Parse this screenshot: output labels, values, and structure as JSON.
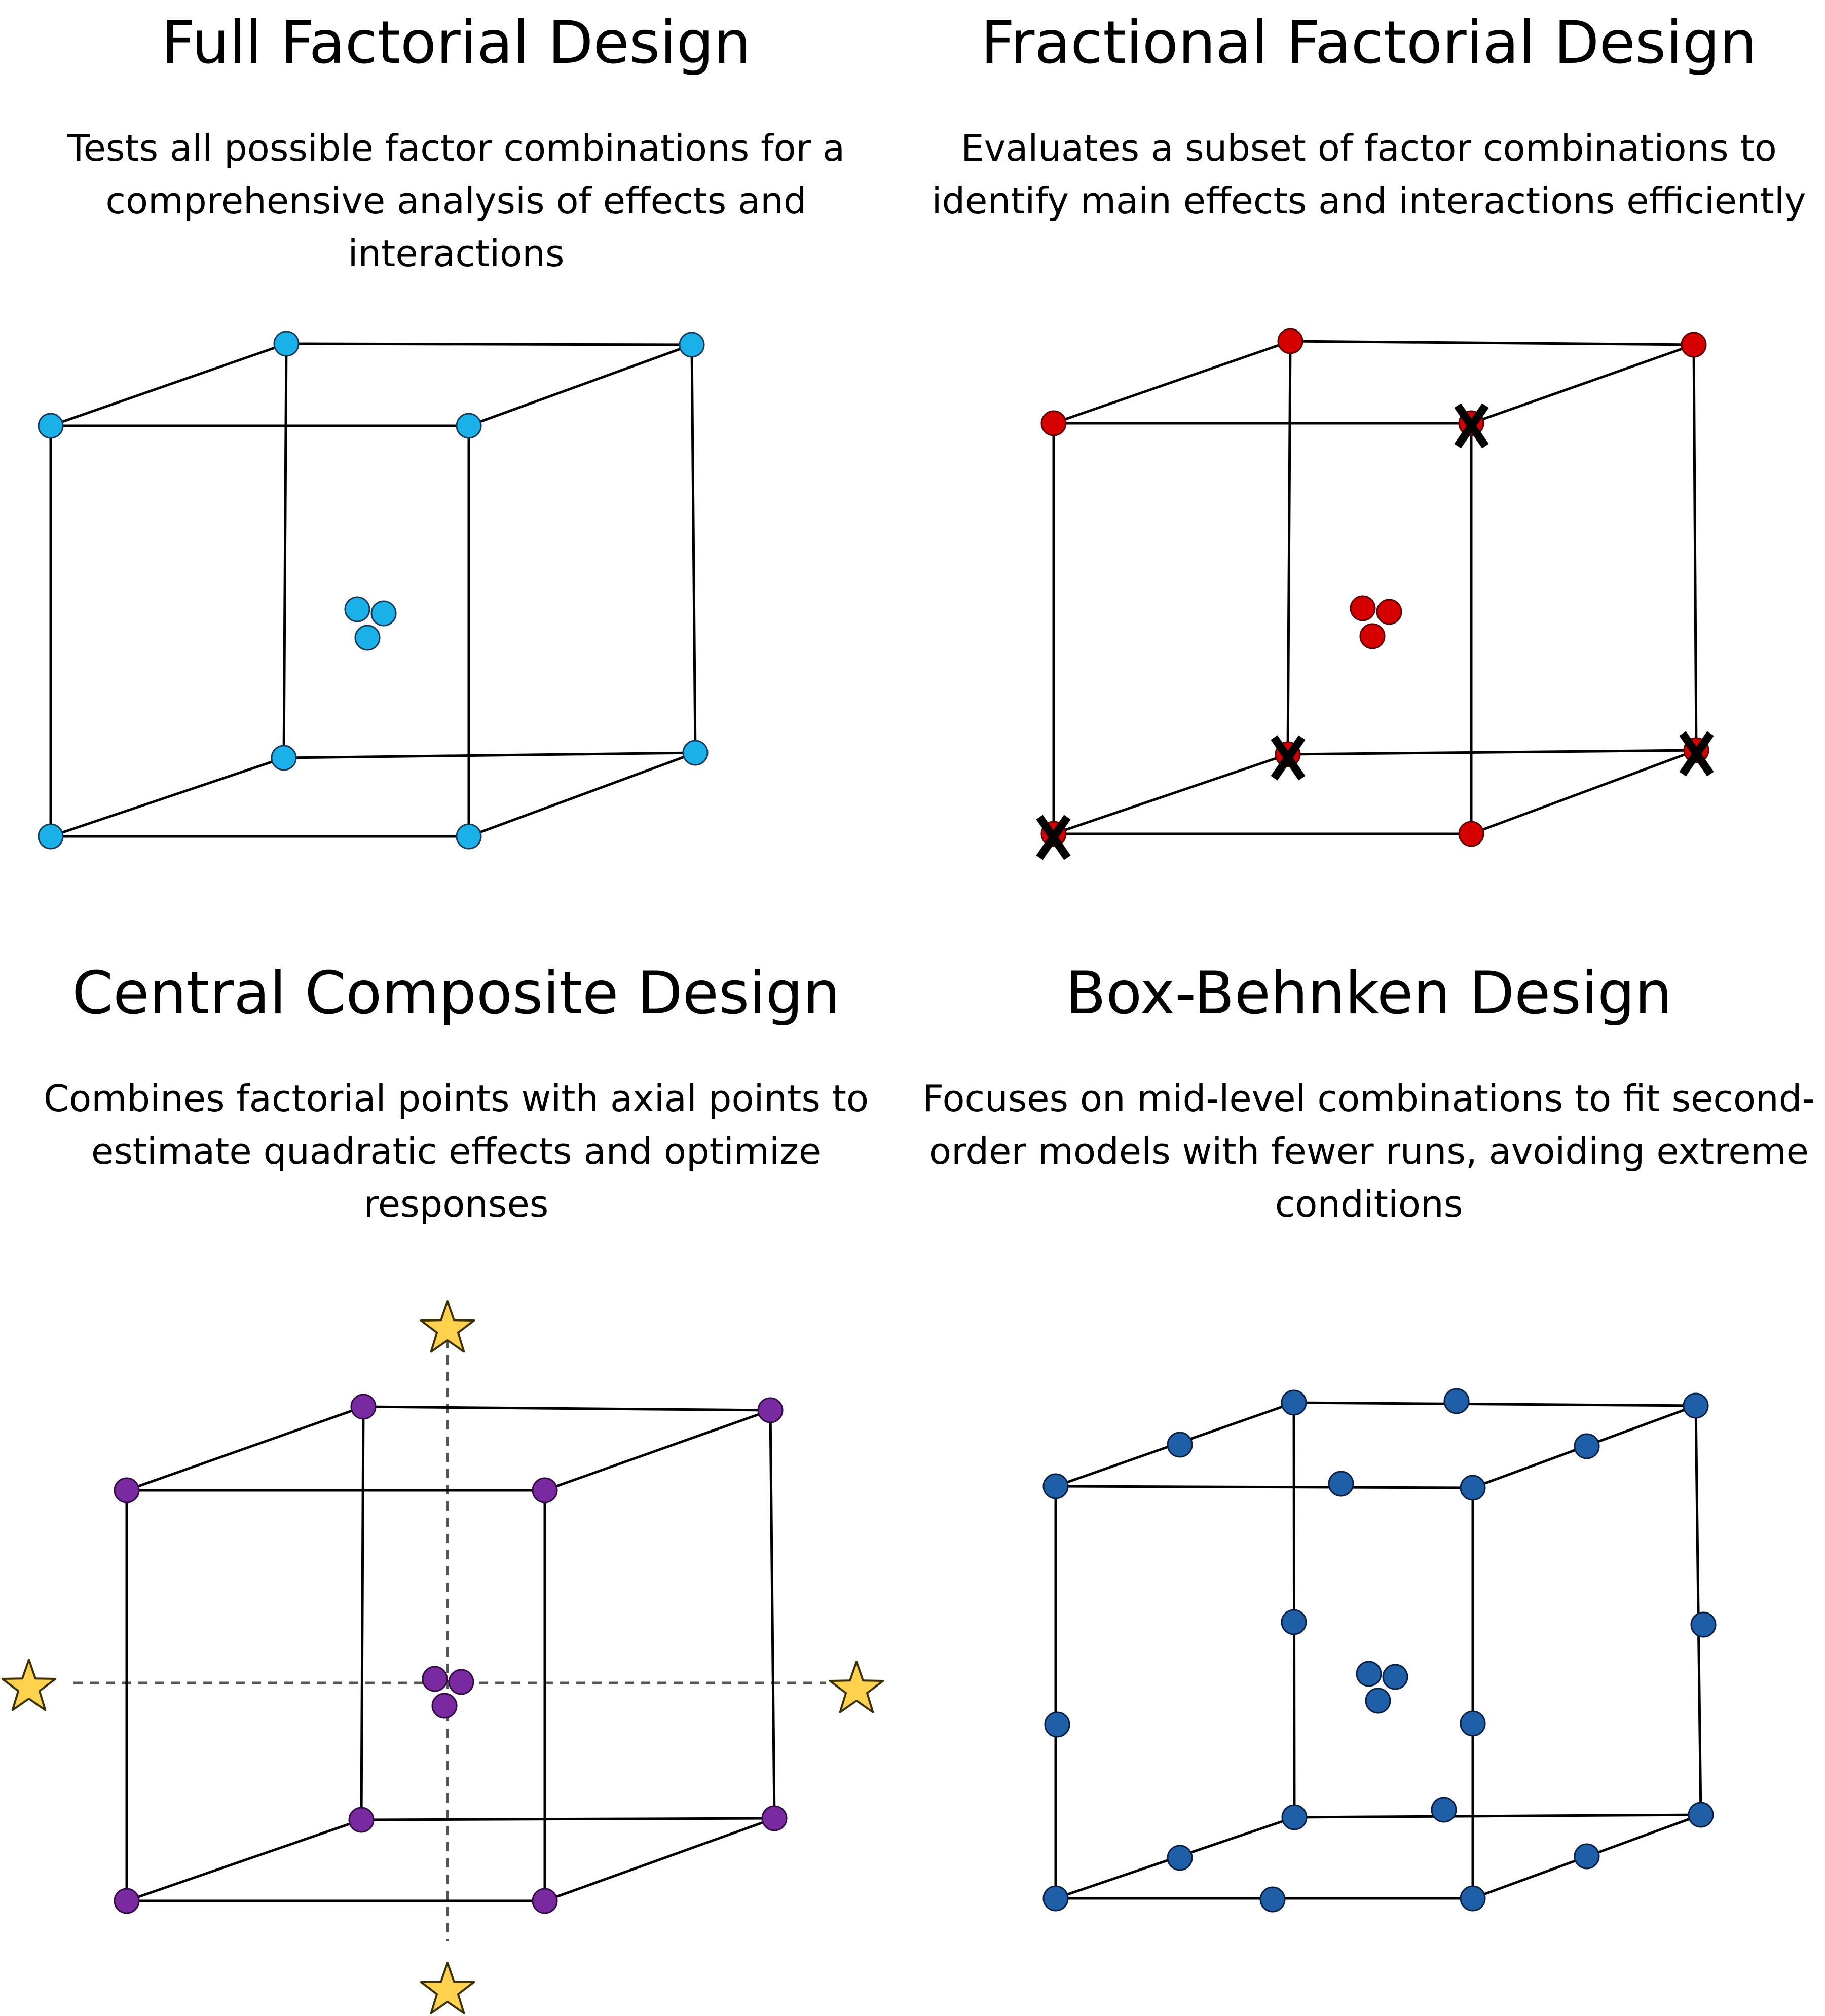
{
  "colors": {
    "full": "#1ab0e8",
    "fractional": "#d60000",
    "ccd": "#7a2aa0",
    "bbd": "#1f5fa8",
    "star": "#ffd24d",
    "edge": "#000000",
    "dashed": "#555555"
  },
  "panels": [
    {
      "id": "full-factorial",
      "title": "Full Factorial Design",
      "description_lines": [
        "Tests all possible factor combinations for a",
        "comprehensive analysis of effects and",
        "interactions"
      ],
      "color_key": "full"
    },
    {
      "id": "fractional-factorial",
      "title": "Fractional Factorial Design",
      "description_lines": [
        "Evaluates a subset of factor combinations to",
        "identify main effects and interactions efficiently"
      ],
      "color_key": "fractional"
    },
    {
      "id": "central-composite",
      "title": "Central Composite Design",
      "description_lines": [
        "Combines factorial points with axial points to",
        "estimate quadratic effects and optimize",
        "responses"
      ],
      "color_key": "ccd"
    },
    {
      "id": "box-behnken",
      "title": "Box-Behnken Design",
      "description_lines": [
        "Focuses on mid-level combinations to fit second-",
        "order models with fewer runs, avoiding extreme",
        "conditions"
      ],
      "color_key": "bbd"
    }
  ]
}
